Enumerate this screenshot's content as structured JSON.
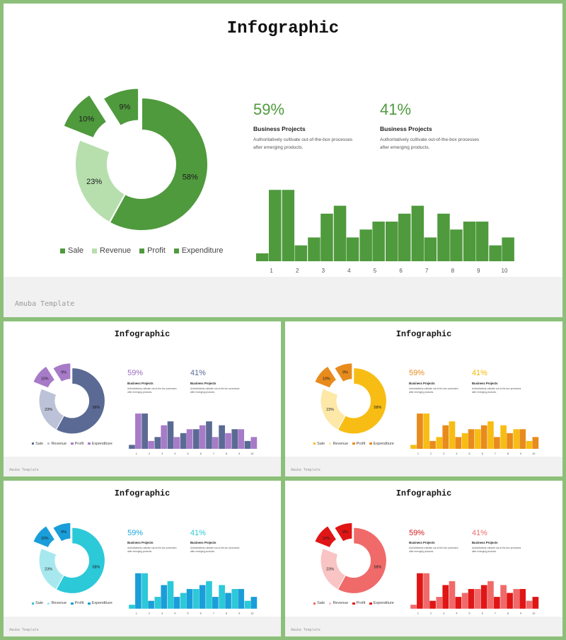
{
  "slides": [
    {
      "theme": "green",
      "title": "Infographic",
      "footer": "Amuba Template",
      "colors": {
        "main": "#4f9a3d",
        "light": "#b7dfae",
        "text": "#4f9a3d",
        "text2": "#4f9a3d",
        "barA": "#4f9a3d",
        "barB": "#4f9a3d"
      },
      "stats": [
        {
          "value": "59%",
          "heading": "Business Projects",
          "desc": [
            "Authoritatively cultivate out-of-the-box processes",
            "after emerging products."
          ]
        },
        {
          "value": "41%",
          "heading": "Business Projects",
          "desc": [
            "Authoritatively cultivate out-of-the-box processes",
            "after emerging products."
          ]
        }
      ],
      "legend": [
        "Sale",
        "Revenue",
        "Profit",
        "Expenditure"
      ]
    },
    {
      "theme": "purple",
      "title": "Infographic",
      "footer": "Amuba Template",
      "colors": {
        "main": "#5a6a94",
        "light": "#bcc2d8",
        "text": "#9b6bbd",
        "text2": "#5a6a94",
        "barA": "#a77bc8",
        "barB": "#5a6a94"
      },
      "stats": [
        {
          "value": "59%",
          "heading": "Business Projects",
          "desc": [
            "Authoritatively cultivate out-of-the-box processes",
            "after emerging products."
          ]
        },
        {
          "value": "41%",
          "heading": "Business Projects",
          "desc": [
            "Authoritatively cultivate out-of-the-box processes",
            "after emerging products."
          ]
        }
      ],
      "legend": [
        "Sale",
        "Revenue",
        "Profit",
        "Expenditure"
      ]
    },
    {
      "theme": "orange",
      "title": "Infographic",
      "footer": "Amuba Template",
      "colors": {
        "main": "#f7bd14",
        "light": "#fde8a8",
        "text": "#e88b1d",
        "text2": "#f5b800",
        "barA": "#e88b1d",
        "barB": "#f7bd14"
      },
      "stats": [
        {
          "value": "59%",
          "heading": "Business Projects",
          "desc": [
            "Authoritatively cultivate out-of-the-box processes",
            "after emerging products."
          ]
        },
        {
          "value": "41%",
          "heading": "Business Projects",
          "desc": [
            "Authoritatively cultivate out-of-the-box processes",
            "after emerging products."
          ]
        }
      ],
      "legend": [
        "Sale",
        "Revenue",
        "Profit",
        "Expenditure"
      ]
    },
    {
      "theme": "cyan",
      "title": "Infographic",
      "footer": "Amuba Template",
      "colors": {
        "main": "#2cc9d8",
        "light": "#a7e8ef",
        "text": "#1aa6d8",
        "text2": "#2cc9d8",
        "barA": "#1a9ed9",
        "barB": "#2cc9d8"
      },
      "stats": [
        {
          "value": "59%",
          "heading": "Business Projects",
          "desc": [
            "Authoritatively cultivate out-of-the-box processes",
            "after emerging products."
          ]
        },
        {
          "value": "41%",
          "heading": "Business Projects",
          "desc": [
            "Authoritatively cultivate out-of-the-box processes",
            "after emerging products."
          ]
        }
      ],
      "legend": [
        "Sale",
        "Revenue",
        "Profit",
        "Expenditure"
      ]
    },
    {
      "theme": "red",
      "title": "Infographic",
      "footer": "Amuba Template",
      "colors": {
        "main": "#f06a6a",
        "light": "#f9c4c4",
        "text": "#d21b1b",
        "text2": "#f06a6a",
        "barA": "#e01515",
        "barB": "#f06a6a"
      },
      "stats": [
        {
          "value": "59%",
          "heading": "Business Projects",
          "desc": [
            "Authoritatively cultivate out-of-the-box processes",
            "after emerging products."
          ]
        },
        {
          "value": "41%",
          "heading": "Business Projects",
          "desc": [
            "Authoritatively cultivate out-of-the-box processes",
            "after emerging products."
          ]
        }
      ],
      "legend": [
        "Sale",
        "Revenue",
        "Profit",
        "Expenditure"
      ]
    }
  ],
  "chart_data": [
    {
      "type": "pie",
      "variant": "donut-with-exploded-slices",
      "labels": [
        "Sale",
        "Revenue",
        "Profit",
        "Expenditure"
      ],
      "values": [
        58,
        23,
        10,
        9
      ],
      "value_labels": [
        "58%",
        "23%",
        "10%",
        "9%"
      ],
      "exploded": [
        "Profit",
        "Expenditure"
      ],
      "legend_position": "bottom"
    },
    {
      "type": "bar",
      "variant": "paired-columns",
      "categories": [
        "1",
        "2",
        "3",
        "4",
        "5",
        "6",
        "7",
        "8",
        "9",
        "10"
      ],
      "series": [
        {
          "values": [
            1,
            9,
            3,
            7,
            4,
            5,
            7,
            6,
            5,
            2
          ]
        },
        {
          "values": [
            9,
            2,
            6,
            3,
            5,
            6,
            3,
            4,
            5,
            3
          ]
        }
      ],
      "ylim": [
        0,
        10
      ],
      "grid": false,
      "legend": false
    }
  ]
}
